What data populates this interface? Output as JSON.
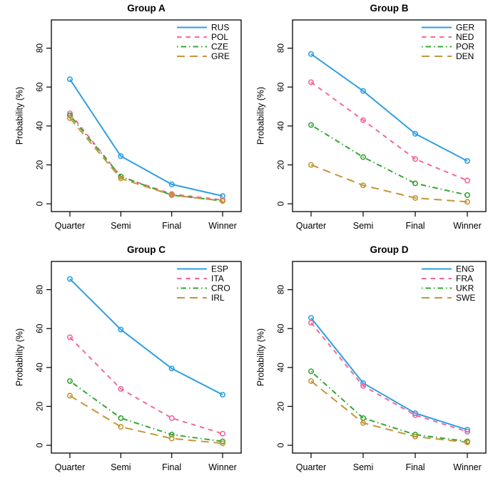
{
  "figure": {
    "background": "#ffffff",
    "text_color": "#000000",
    "description": "2x2 grid of line charts of tournament advancement probabilities by group"
  },
  "axes": {
    "ylabel": "Probability (%)",
    "yticks": [
      0,
      20,
      40,
      60,
      80
    ],
    "categories": [
      "Quarter",
      "Semi",
      "Final",
      "Winner"
    ],
    "ylim": [
      0,
      90
    ],
    "grid": false,
    "legend_position": "top-right"
  },
  "styles": {
    "series_colors": [
      "#2E9FE3",
      "#F4679E",
      "#35A535",
      "#C49637"
    ],
    "series_linetypes": [
      "solid",
      "dashed",
      "dotdash",
      "longdash"
    ],
    "marker": "open-circle",
    "line_width": 2,
    "box_color": "#000000"
  },
  "chart_data": [
    {
      "type": "line",
      "title": "Group A",
      "xlabel": "",
      "ylabel": "Probability (%)",
      "categories": [
        "Quarter",
        "Semi",
        "Final",
        "Winner"
      ],
      "yticks": [
        0,
        20,
        40,
        60,
        80
      ],
      "ylim": [
        0,
        90
      ],
      "grid": false,
      "legend_position": "top-right",
      "series": [
        {
          "name": "RUS",
          "values": [
            64,
            24.5,
            10,
            4
          ],
          "color": "#2E9FE3",
          "linetype": "solid"
        },
        {
          "name": "POL",
          "values": [
            46.5,
            14,
            5,
            2
          ],
          "color": "#F4679E",
          "linetype": "dashed"
        },
        {
          "name": "CZE",
          "values": [
            45.5,
            14,
            4.5,
            1.5
          ],
          "color": "#35A535",
          "linetype": "dotdash"
        },
        {
          "name": "GRE",
          "values": [
            44,
            13,
            4.5,
            1.5
          ],
          "color": "#C49637",
          "linetype": "longdash"
        }
      ]
    },
    {
      "type": "line",
      "title": "Group B",
      "xlabel": "",
      "ylabel": "Probability (%)",
      "categories": [
        "Quarter",
        "Semi",
        "Final",
        "Winner"
      ],
      "yticks": [
        0,
        20,
        40,
        60,
        80
      ],
      "ylim": [
        0,
        90
      ],
      "grid": false,
      "legend_position": "top-right",
      "series": [
        {
          "name": "GER",
          "values": [
            77,
            58,
            36,
            22
          ],
          "color": "#2E9FE3",
          "linetype": "solid"
        },
        {
          "name": "NED",
          "values": [
            62.5,
            43,
            23,
            12
          ],
          "color": "#F4679E",
          "linetype": "dashed"
        },
        {
          "name": "POR",
          "values": [
            40.5,
            24,
            10.5,
            4.5
          ],
          "color": "#35A535",
          "linetype": "dotdash"
        },
        {
          "name": "DEN",
          "values": [
            20,
            9.5,
            3,
            1
          ],
          "color": "#C49637",
          "linetype": "longdash"
        }
      ]
    },
    {
      "type": "line",
      "title": "Group C",
      "xlabel": "",
      "ylabel": "Probability (%)",
      "categories": [
        "Quarter",
        "Semi",
        "Final",
        "Winner"
      ],
      "yticks": [
        0,
        20,
        40,
        60,
        80
      ],
      "ylim": [
        0,
        90
      ],
      "grid": false,
      "legend_position": "top-right",
      "series": [
        {
          "name": "ESP",
          "values": [
            85.5,
            59.5,
            39.5,
            26
          ],
          "color": "#2E9FE3",
          "linetype": "solid"
        },
        {
          "name": "ITA",
          "values": [
            55.5,
            29,
            14,
            6
          ],
          "color": "#F4679E",
          "linetype": "dashed"
        },
        {
          "name": "CRO",
          "values": [
            33,
            14,
            5.5,
            2
          ],
          "color": "#35A535",
          "linetype": "dotdash"
        },
        {
          "name": "IRL",
          "values": [
            25.5,
            9.5,
            3.5,
            1
          ],
          "color": "#C49637",
          "linetype": "longdash"
        }
      ]
    },
    {
      "type": "line",
      "title": "Group D",
      "xlabel": "",
      "ylabel": "Probability (%)",
      "categories": [
        "Quarter",
        "Semi",
        "Final",
        "Winner"
      ],
      "yticks": [
        0,
        20,
        40,
        60,
        80
      ],
      "ylim": [
        0,
        90
      ],
      "grid": false,
      "legend_position": "top-right",
      "series": [
        {
          "name": "ENG",
          "values": [
            65.5,
            32,
            16.5,
            8
          ],
          "color": "#2E9FE3",
          "linetype": "solid"
        },
        {
          "name": "FRA",
          "values": [
            63,
            30.5,
            15.5,
            7
          ],
          "color": "#F4679E",
          "linetype": "dashed"
        },
        {
          "name": "UKR",
          "values": [
            38,
            14,
            5.5,
            2
          ],
          "color": "#35A535",
          "linetype": "dotdash"
        },
        {
          "name": "SWE",
          "values": [
            33,
            11.5,
            4.5,
            1.5
          ],
          "color": "#C49637",
          "linetype": "longdash"
        }
      ]
    }
  ]
}
